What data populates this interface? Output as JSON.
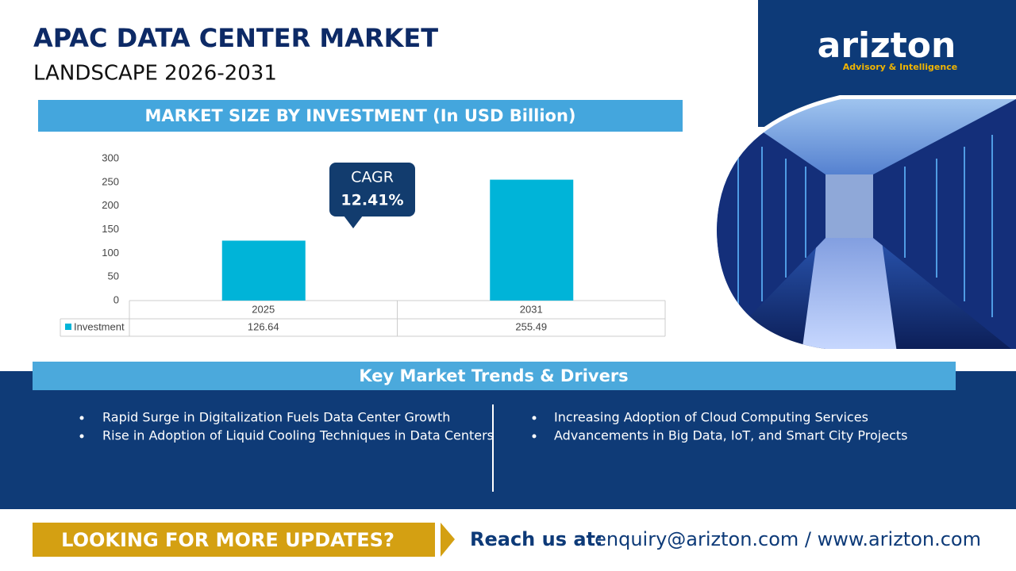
{
  "header": {
    "title": "APAC DATA CENTER MARKET",
    "subtitle": "LANDSCAPE 2026-2031"
  },
  "logo": {
    "name": "arizton",
    "tagline": "Advisory & Intelligence"
  },
  "chart_data": {
    "type": "bar",
    "title": "MARKET SIZE BY INVESTMENT (In USD Billion)",
    "categories": [
      "2025",
      "2031"
    ],
    "series": [
      {
        "name": "Investment",
        "color": "#00b4d8",
        "values": [
          126.64,
          255.49
        ]
      }
    ],
    "ylim": [
      0,
      300
    ],
    "yticks": [
      0,
      50,
      100,
      150,
      200,
      250,
      300
    ],
    "grid": false,
    "annotation": {
      "title": "CAGR",
      "text": "12.41%"
    }
  },
  "trends": {
    "title": "Key Market Trends & Drivers",
    "items": [
      "Rapid Surge in Digitalization Fuels Data Center Growth",
      "Rise in Adoption of Liquid Cooling Techniques in Data Centers",
      "Increasing Adoption of Cloud Computing Services",
      "Advancements in Big Data, IoT, and Smart City Projects"
    ]
  },
  "footer": {
    "cta": "LOOKING FOR MORE UPDATES?",
    "contact_label": "Reach us at:",
    "contact": "enquiry@arizton.com / www.arizton.com"
  }
}
